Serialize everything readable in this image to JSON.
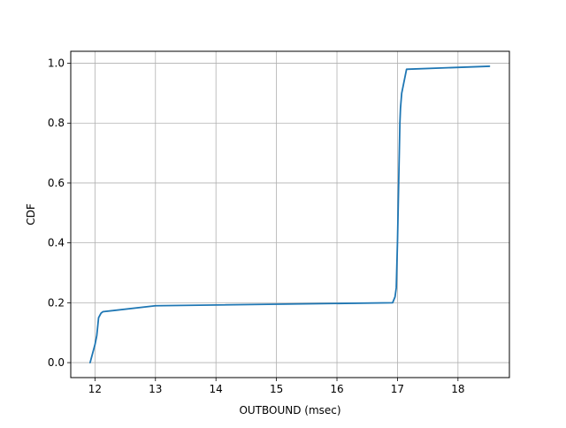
{
  "chart_data": {
    "type": "line",
    "title": "",
    "xlabel": "OUTBOUND (msec)",
    "ylabel": "CDF",
    "xlim": [
      11.6,
      18.85
    ],
    "ylim": [
      -0.05,
      1.04
    ],
    "x_ticks": [
      12,
      13,
      14,
      15,
      16,
      17,
      18
    ],
    "x_tick_labels": [
      "12",
      "13",
      "14",
      "15",
      "16",
      "17",
      "18"
    ],
    "y_ticks": [
      0.0,
      0.2,
      0.4,
      0.6,
      0.8,
      1.0
    ],
    "y_tick_labels": [
      "0.0",
      "0.2",
      "0.4",
      "0.6",
      "0.8",
      "1.0"
    ],
    "grid": true,
    "legend": "none",
    "series": [
      {
        "color": "#1f77b4",
        "x": [
          11.92,
          11.96,
          12.0,
          12.03,
          12.05,
          12.06,
          12.1,
          12.13,
          13.0,
          16.92,
          16.96,
          16.98,
          17.0,
          17.01,
          17.02,
          17.03,
          17.04,
          17.05,
          17.07,
          17.1,
          17.13,
          17.15,
          18.52
        ],
        "y": [
          0.0,
          0.03,
          0.06,
          0.09,
          0.13,
          0.15,
          0.165,
          0.17,
          0.19,
          0.2,
          0.22,
          0.25,
          0.4,
          0.5,
          0.6,
          0.7,
          0.8,
          0.85,
          0.9,
          0.93,
          0.96,
          0.98,
          0.99
        ]
      }
    ]
  }
}
